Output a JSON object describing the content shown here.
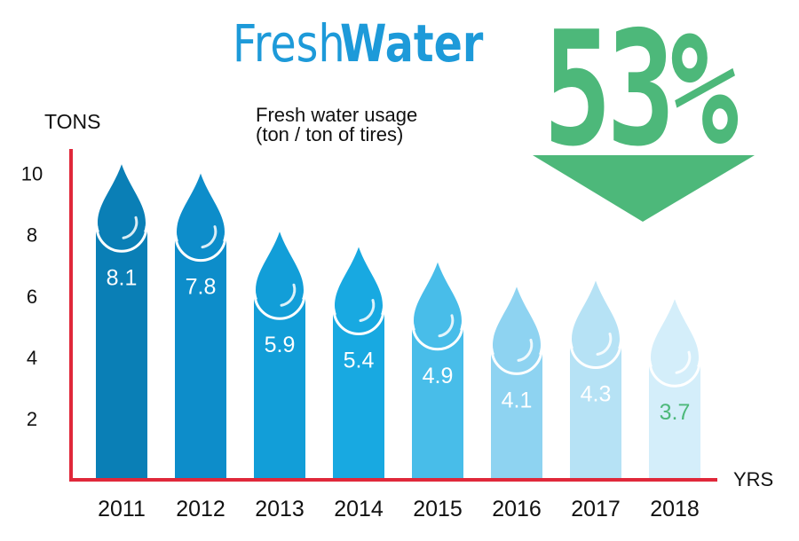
{
  "header": {
    "title_part1": "Fresh",
    "title_part2": "Water",
    "subtitle_line1": "Fresh water usage",
    "subtitle_line2": "(ton / ton of tires)",
    "reduction_label": "53%"
  },
  "colors": {
    "title": "#1d9ad9",
    "accent_green": "#4db87a",
    "axis": "#e0283a",
    "bars": [
      "#0a7fb6",
      "#0d8dca",
      "#129ed8",
      "#18a9e1",
      "#48bde9",
      "#8ed3f1",
      "#b6e2f5",
      "#d4eefa"
    ]
  },
  "chart_data": {
    "type": "bar",
    "title": "Fresh Water",
    "ylabel": "TONS",
    "xlabel": "YRS",
    "ylim": [
      0,
      10.8
    ],
    "yticks": [
      2,
      4,
      6,
      8,
      10
    ],
    "categories": [
      "2011",
      "2012",
      "2013",
      "2014",
      "2015",
      "2016",
      "2017",
      "2018"
    ],
    "values": [
      8.1,
      7.8,
      5.9,
      5.4,
      4.9,
      4.1,
      4.3,
      3.7
    ],
    "value_labels": [
      "8.1",
      "7.8",
      "5.9",
      "5.4",
      "4.9",
      "4.1",
      "4.3",
      "3.7"
    ],
    "annotation": "53%",
    "grid": false
  }
}
